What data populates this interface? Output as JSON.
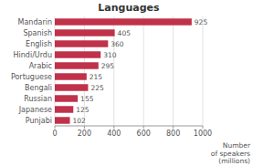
{
  "chart_data": {
    "type": "bar",
    "orientation": "horizontal",
    "title": "Languages",
    "xlabel": "Number\nof speakers\n(millions)",
    "categories": [
      "Mandarin",
      "Spanish",
      "English",
      "Hindi/Urdu",
      "Arabic",
      "Portuguese",
      "Bengali",
      "Russian",
      "Japanese",
      "Punjabi"
    ],
    "values": [
      925,
      405,
      360,
      310,
      295,
      215,
      225,
      155,
      125,
      102
    ],
    "color": "#c0314a",
    "xlim": [
      0,
      1000
    ],
    "xticks": [
      0,
      200,
      400,
      600,
      800,
      1000
    ],
    "grid": true,
    "data_labels": true
  }
}
